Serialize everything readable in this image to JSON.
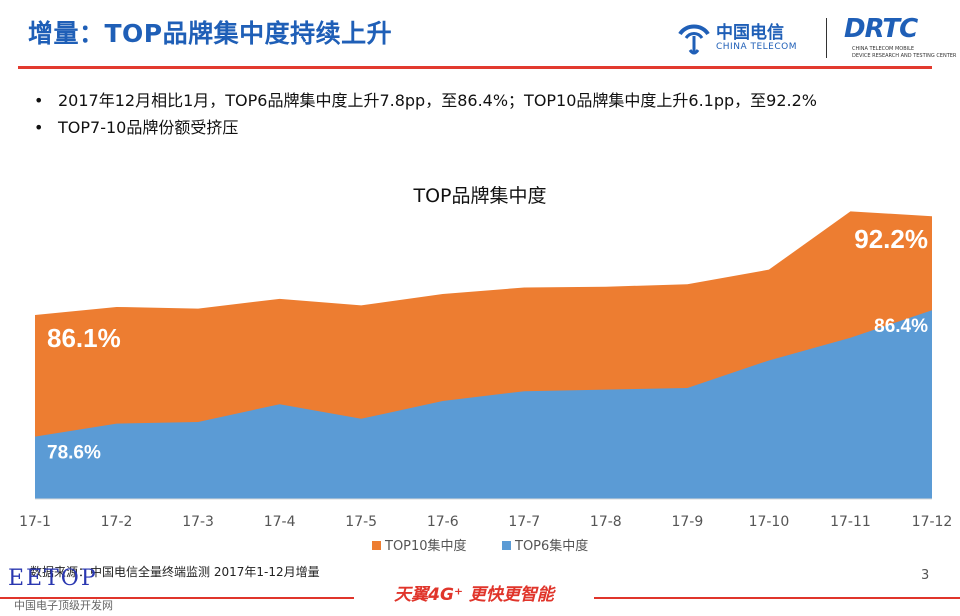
{
  "header": {
    "title": "增量：TOP品牌集中度持续上升",
    "logo_ct_cn": "中国电信",
    "logo_ct_en": "CHINA TELECOM",
    "logo_rtc": "DRTC",
    "logo_rtc_sub1": "CHINA TELECOM MOBILE",
    "logo_rtc_sub2": "DEVICE RESEARCH AND TESTING CENTER"
  },
  "bullets": [
    "2017年12月相比1月，TOP6品牌集中度上升7.8pp，至86.4%；TOP10品牌集中度上升6.1pp，至92.2%",
    "TOP7-10品牌份额受挤压"
  ],
  "chart_data": {
    "type": "area",
    "title": "TOP品牌集中度",
    "categories": [
      "17-1",
      "17-2",
      "17-3",
      "17-4",
      "17-5",
      "17-6",
      "17-7",
      "17-8",
      "17-9",
      "17-10",
      "17-11",
      "17-12"
    ],
    "series": [
      {
        "name": "TOP10集中度",
        "color": "#ed7d31",
        "values": [
          86.1,
          86.6,
          86.5,
          87.1,
          86.7,
          87.4,
          87.8,
          87.85,
          88.0,
          88.9,
          92.5,
          92.2
        ]
      },
      {
        "name": "TOP6集中度",
        "color": "#5b9bd5",
        "values": [
          78.6,
          79.4,
          79.5,
          80.6,
          79.7,
          80.8,
          81.4,
          81.5,
          81.6,
          83.3,
          84.7,
          86.4
        ]
      }
    ],
    "ylim": [
      74.75,
      93.2
    ],
    "legend": "bottom",
    "data_labels": [
      {
        "series": "TOP10集中度",
        "index": 0,
        "text": "86.1%"
      },
      {
        "series": "TOP6集中度",
        "index": 0,
        "text": "78.6%"
      },
      {
        "series": "TOP10集中度",
        "index": 11,
        "text": "92.2%"
      },
      {
        "series": "TOP6集中度",
        "index": 11,
        "text": "86.4%"
      }
    ]
  },
  "footer": {
    "source": "数据来源：中国电信全量终端监测 2017年1-12月增量",
    "page": "3",
    "slogan": "天翼4G⁺ 更快更智能",
    "watermark": "EETOP",
    "watermark_sub": "中国电子顶级开发网"
  }
}
